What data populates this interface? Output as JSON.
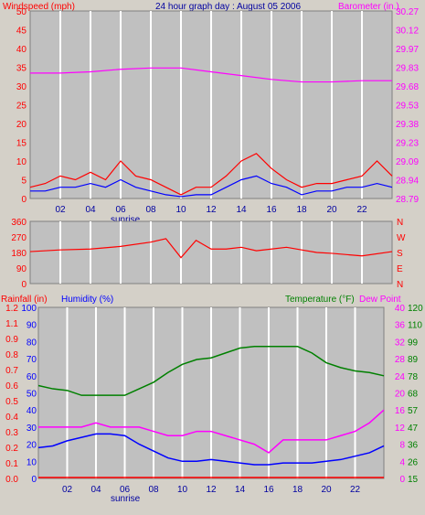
{
  "chart_data": [
    {
      "type": "line",
      "title": "24 hour graph day : August 05 2006",
      "left_label": "Windspeed (mph)",
      "right_label": "Barometer (in.)",
      "ylim_left": [
        0,
        50
      ],
      "left_ticks": [
        "0",
        "5",
        "10",
        "15",
        "20",
        "25",
        "30",
        "35",
        "40",
        "45",
        "50"
      ],
      "right_ticks": [
        "28.79",
        "28.94",
        "29.09",
        "29.23",
        "29.38",
        "29.53",
        "29.68",
        "29.83",
        "29.97",
        "30.12",
        "30.27"
      ],
      "x_ticks": [
        "02",
        "04",
        "06",
        "08",
        "10",
        "12",
        "14",
        "16",
        "18",
        "20",
        "22"
      ],
      "sunrise_label": "sunrise",
      "series": [
        {
          "name": "Windspeed gust",
          "color": "#ff0000",
          "x": [
            0,
            1,
            2,
            3,
            4,
            5,
            6,
            7,
            8,
            9,
            10,
            11,
            12,
            13,
            14,
            15,
            16,
            17,
            18,
            19,
            20,
            21,
            22,
            23,
            24
          ],
          "values": [
            3,
            4,
            6,
            5,
            7,
            5,
            10,
            6,
            5,
            3,
            1,
            3,
            3,
            6,
            10,
            12,
            8,
            5,
            3,
            4,
            4,
            5,
            6,
            10,
            6
          ]
        },
        {
          "name": "Windspeed avg",
          "color": "#0000ff",
          "x": [
            0,
            1,
            2,
            3,
            4,
            5,
            6,
            7,
            8,
            9,
            10,
            11,
            12,
            13,
            14,
            15,
            16,
            17,
            18,
            19,
            20,
            21,
            22,
            23,
            24
          ],
          "values": [
            2,
            2,
            3,
            3,
            4,
            3,
            5,
            3,
            2,
            1,
            0.5,
            1,
            1,
            3,
            5,
            6,
            4,
            3,
            1,
            2,
            2,
            3,
            3,
            4,
            3
          ]
        },
        {
          "name": "Barometer",
          "color": "#ff00ff",
          "x": [
            0,
            2,
            4,
            6,
            8,
            10,
            12,
            14,
            16,
            18,
            20,
            22,
            24
          ],
          "values": [
            29.78,
            29.78,
            29.79,
            29.81,
            29.82,
            29.82,
            29.79,
            29.76,
            29.73,
            29.71,
            29.71,
            29.72,
            29.72
          ]
        }
      ]
    },
    {
      "type": "line",
      "title": "",
      "ylim_left": [
        0,
        360
      ],
      "left_ticks": [
        "0",
        "90",
        "180",
        "270",
        "360"
      ],
      "right_ticks": [
        "N",
        "W",
        "S",
        "E",
        "N"
      ],
      "series": [
        {
          "name": "Wind direction",
          "color": "#ff0000",
          "x": [
            0,
            2,
            4,
            6,
            8,
            9,
            10,
            11,
            12,
            13,
            14,
            15,
            16,
            17,
            18,
            19,
            20,
            22,
            24
          ],
          "values": [
            185,
            195,
            200,
            215,
            240,
            260,
            150,
            250,
            200,
            200,
            210,
            190,
            200,
            210,
            195,
            180,
            175,
            160,
            185
          ]
        }
      ]
    },
    {
      "type": "line",
      "title": "",
      "left_label_1": "Rainfall (in)",
      "left_label_2": "Humidity (%)",
      "right_label_1": "Temperature (°F)",
      "right_label_2": "Dew Point",
      "rain_ticks": [
        "0.0",
        "0.1",
        "0.2",
        "0.3",
        "0.4",
        "0.5",
        "0.6",
        "0.7",
        "0.8",
        "0.9",
        "1.1",
        "1.2"
      ],
      "hum_ticks": [
        "0",
        "10",
        "20",
        "30",
        "40",
        "50",
        "60",
        "70",
        "80",
        "90",
        "100"
      ],
      "temp_ticks": [
        "15",
        "26",
        "36",
        "47",
        "57",
        "68",
        "78",
        "89",
        "99",
        "110",
        "120"
      ],
      "dew_ticks": [
        "0",
        "4",
        "8",
        "12",
        "16",
        "20",
        "24",
        "28",
        "32",
        "36",
        "40"
      ],
      "x_ticks": [
        "02",
        "04",
        "06",
        "08",
        "10",
        "12",
        "14",
        "16",
        "18",
        "20",
        "22"
      ],
      "sunrise_label": "sunrise",
      "series": [
        {
          "name": "Temperature",
          "color": "#008000",
          "x": [
            0,
            1,
            2,
            3,
            4,
            5,
            6,
            7,
            8,
            9,
            10,
            11,
            12,
            13,
            14,
            15,
            16,
            17,
            18,
            19,
            20,
            21,
            22,
            23,
            24
          ],
          "values": [
            72,
            70,
            69,
            66,
            66,
            66,
            66,
            70,
            74,
            80,
            85,
            88,
            89,
            92,
            95,
            96,
            96,
            96,
            96,
            92,
            86,
            83,
            81,
            80,
            78
          ]
        },
        {
          "name": "Humidity",
          "color": "#0000ff",
          "x": [
            0,
            1,
            2,
            3,
            4,
            5,
            6,
            7,
            8,
            9,
            10,
            11,
            12,
            13,
            14,
            15,
            16,
            17,
            18,
            19,
            20,
            21,
            22,
            23,
            24
          ],
          "values": [
            18,
            19,
            22,
            24,
            26,
            26,
            25,
            20,
            16,
            12,
            10,
            10,
            11,
            10,
            9,
            8,
            8,
            9,
            9,
            9,
            10,
            11,
            13,
            15,
            19
          ]
        },
        {
          "name": "Dew Point",
          "color": "#ff00ff",
          "x": [
            0,
            1,
            2,
            3,
            4,
            5,
            6,
            7,
            8,
            9,
            10,
            11,
            12,
            13,
            14,
            15,
            16,
            17,
            18,
            19,
            20,
            21,
            22,
            23,
            24
          ],
          "values": [
            12,
            12,
            12,
            12,
            13,
            12,
            12,
            12,
            11,
            10,
            10,
            11,
            11,
            10,
            9,
            8,
            6,
            9,
            9,
            9,
            9,
            10,
            11,
            13,
            16
          ]
        },
        {
          "name": "Rainfall",
          "color": "#ff0000",
          "x": [
            0,
            24
          ],
          "values": [
            0,
            0
          ]
        }
      ]
    }
  ]
}
